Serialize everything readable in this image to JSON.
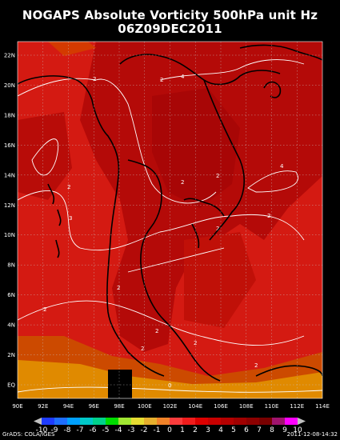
{
  "title_line1": "NOGAPS Absolute Vorticity 500hPa unit Hz",
  "title_line2": "06Z09DEC2011",
  "lat_ticks": [
    "22N",
    "20N",
    "18N",
    "16N",
    "14N",
    "12N",
    "10N",
    "8N",
    "6N",
    "4N",
    "2N",
    "EQ"
  ],
  "lon_ticks": [
    "90E",
    "92E",
    "94E",
    "96E",
    "98E",
    "100E",
    "102E",
    "104E",
    "106E",
    "108E",
    "110E",
    "112E",
    "114E"
  ],
  "contour_labels": [
    "2",
    "2",
    "4",
    "2",
    "2",
    "4",
    "2",
    "2",
    "2",
    "3",
    "2",
    "2",
    "2",
    "2",
    "2",
    "2",
    "0"
  ],
  "colorbar": {
    "labels": [
      "-10",
      "-9",
      "-8",
      "-7",
      "-6",
      "-5",
      "-4",
      "-3",
      "-2",
      "-1",
      "0",
      "1",
      "2",
      "3",
      "4",
      "5",
      "6",
      "7",
      "8",
      "9",
      "10"
    ],
    "colors": [
      "#1e3cff",
      "#1e6eff",
      "#00a0ff",
      "#00c8c8",
      "#00d28c",
      "#00dc00",
      "#a0e632",
      "#e6dc32",
      "#e6af2d",
      "#f08228",
      "#fa3c3c",
      "#f01c1c",
      "#dc0000",
      "#c80000",
      "#b40000",
      "#a00000",
      "#8c0000",
      "#780000",
      "#a0146e",
      "#ff00ff"
    ]
  },
  "credit_left": "GrADS: COLA/IGES",
  "credit_right": "2011-12-08-14:32",
  "colors": {
    "high": "#b00000",
    "mid": "#d81a10",
    "low": "#cc4a00",
    "lowest": "#e08a00",
    "coast": "#000000"
  }
}
